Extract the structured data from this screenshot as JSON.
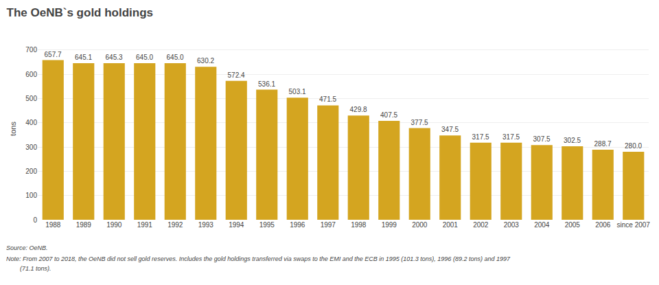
{
  "chart_data": {
    "type": "bar",
    "title": "The OeNB`s gold holdings",
    "ylabel": "tons",
    "categories": [
      "1988",
      "1989",
      "1990",
      "1991",
      "1992",
      "1993",
      "1994",
      "1995",
      "1996",
      "1997",
      "1998",
      "1999",
      "2000",
      "2001",
      "2002",
      "2003",
      "2004",
      "2005",
      "2006",
      "since 2007"
    ],
    "values": [
      657.7,
      645.1,
      645.3,
      645.0,
      645.0,
      630.2,
      572.4,
      536.1,
      503.1,
      471.5,
      429.8,
      407.5,
      377.5,
      347.5,
      317.5,
      317.5,
      307.5,
      302.5,
      288.7,
      280.0
    ],
    "value_labels": [
      "657.7",
      "645.1",
      "645.3",
      "645.0",
      "645.0",
      "630.2",
      "572.4",
      "536.1",
      "503.1",
      "471.5",
      "429.8",
      "407.5",
      "377.5",
      "347.5",
      "317.5",
      "317.5",
      "307.5",
      "302.5",
      "288.7",
      "280.0"
    ],
    "color": "#D4A520",
    "ylim": [
      0,
      750
    ],
    "yticks": [
      0,
      100,
      200,
      300,
      400,
      500,
      600,
      700
    ],
    "grid": true,
    "data_labels": true,
    "annotations": [
      "Source: OeNB.",
      "Note: From 2007 to 2018, the OeNB did not sell gold reserves. Includes the gold holdings transferred via swaps to the EMI and the ECB in 1995 (101.3 tons), 1996 (89.2 tons) and 1997",
      "        (71.1 tons)."
    ]
  }
}
